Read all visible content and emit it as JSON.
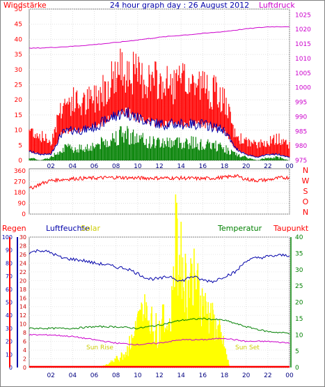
{
  "colors": {
    "wind": "#ff0000",
    "gust_mid": "#0000aa",
    "wind_avg": "#008000",
    "pressure": "#cc00cc",
    "direction": "#ff0000",
    "humidity": "#0000aa",
    "solar": "#ffff00",
    "temperature": "#008000",
    "dewpoint": "#cc00cc",
    "rain": "#ff0000",
    "frame": "#808080",
    "background": "#ffffff"
  },
  "chart_data": [
    {
      "type": "line",
      "title": "24 hour graph day : 26 August 2012",
      "left_label": "Windstärke",
      "right_label": "Luftdruck",
      "x_ticks": [
        "02",
        "04",
        "06",
        "08",
        "10",
        "12",
        "14",
        "16",
        "18",
        "20",
        "22",
        "00"
      ],
      "y_left_ticks": [
        "0",
        "5",
        "10",
        "15",
        "20",
        "25",
        "30",
        "35",
        "40",
        "45",
        "50"
      ],
      "y_left_range": [
        0,
        50
      ],
      "y_right_ticks": [
        "975",
        "980",
        "985",
        "990",
        "995",
        "1000",
        "1005",
        "1010",
        "1015",
        "1020",
        "1025"
      ],
      "y_right_range": [
        975,
        1027
      ],
      "grid": true,
      "series": [
        {
          "key": "gust",
          "x": [
            0,
            1,
            2,
            3,
            4,
            5,
            6,
            7,
            8,
            9,
            10,
            11,
            12,
            13,
            14,
            15,
            16,
            17,
            18,
            19,
            20,
            21,
            22,
            23,
            24
          ],
          "values": [
            10,
            8,
            6,
            18,
            19,
            18,
            20,
            24,
            28,
            30,
            27,
            26,
            25,
            24,
            25,
            25,
            24,
            22,
            19,
            8,
            6,
            5,
            6,
            7,
            5
          ]
        },
        {
          "key": "wind_mean",
          "x": [
            0,
            1,
            2,
            3,
            4,
            5,
            6,
            7,
            8,
            9,
            10,
            11,
            12,
            13,
            14,
            15,
            16,
            17,
            18,
            19,
            20,
            21,
            22,
            23,
            24
          ],
          "values": [
            3,
            2,
            2,
            9,
            10,
            10,
            11,
            13,
            15,
            16,
            14,
            13,
            12,
            12,
            12,
            12,
            12,
            11,
            10,
            4,
            2,
            1,
            2,
            2,
            1
          ]
        },
        {
          "key": "wind_avg",
          "x": [
            0,
            1,
            2,
            3,
            4,
            5,
            6,
            7,
            8,
            9,
            10,
            11,
            12,
            13,
            14,
            15,
            16,
            17,
            18,
            19,
            20,
            21,
            22,
            23,
            24
          ],
          "values": [
            1,
            0,
            1,
            4,
            4,
            4,
            5,
            6,
            8,
            9,
            7,
            6,
            6,
            6,
            6,
            6,
            5,
            5,
            4,
            2,
            1,
            0,
            1,
            1,
            0
          ]
        },
        {
          "key": "pressure",
          "x": [
            0,
            2,
            4,
            6,
            8,
            10,
            12,
            14,
            16,
            18,
            20,
            22,
            24
          ],
          "values": [
            1013.5,
            1013.8,
            1014.2,
            1014.8,
            1015.5,
            1016.4,
            1017.3,
            1018,
            1018.6,
            1019.3,
            1020.2,
            1020.9,
            1021
          ]
        }
      ]
    },
    {
      "type": "line",
      "direction_labels": [
        "N",
        "W",
        "S",
        "O",
        "N"
      ],
      "y_ticks": [
        "360",
        "270",
        "180",
        "90",
        "0"
      ],
      "y_range": [
        0,
        360
      ],
      "grid": true,
      "series": [
        {
          "key": "direction",
          "x": [
            0,
            1,
            2,
            4,
            6,
            8,
            10,
            12,
            14,
            16,
            18,
            19,
            20,
            21,
            22,
            23,
            24
          ],
          "values": [
            210,
            250,
            280,
            295,
            300,
            305,
            300,
            300,
            300,
            295,
            305,
            320,
            290,
            280,
            285,
            300,
            305
          ]
        }
      ]
    },
    {
      "type": "line",
      "labels": {
        "rain": "Regen",
        "humidity": "Luftfeuchte",
        "solar": "Solar",
        "temperature": "Temperatur",
        "dewpoint": "Taupunkt",
        "sunrise": "Sun Rise",
        "sunset": "Sun Set"
      },
      "x_ticks": [
        "02",
        "04",
        "06",
        "08",
        "10",
        "12",
        "14",
        "16",
        "18",
        "20",
        "22",
        "00"
      ],
      "axis_humidity_ticks": [
        "0",
        "10",
        "20",
        "30",
        "40",
        "50",
        "60",
        "70",
        "80",
        "90",
        "100"
      ],
      "axis_solar_ticks": [
        "0",
        "2",
        "4",
        "6",
        "8",
        "10",
        "12",
        "14",
        "16",
        "18",
        "20",
        "22",
        "24",
        "26",
        "28",
        "30"
      ],
      "axis_temperature_ticks": [
        "0",
        "5",
        "10",
        "15",
        "20",
        "25",
        "30",
        "35",
        "40"
      ],
      "grid": true,
      "series": [
        {
          "key": "humidity",
          "x": [
            0,
            1,
            2,
            3,
            4,
            5,
            6,
            7,
            8,
            9,
            10,
            11,
            12,
            13,
            14,
            15,
            16,
            17,
            18,
            19,
            20,
            21,
            22,
            23,
            24
          ],
          "values": [
            88,
            90,
            88,
            84,
            83,
            82,
            80,
            79,
            77,
            76,
            72,
            68,
            68,
            70,
            66,
            70,
            67,
            66,
            70,
            73,
            82,
            84,
            85,
            86,
            86
          ]
        },
        {
          "key": "temperature",
          "x": [
            0,
            2,
            4,
            6,
            8,
            10,
            12,
            14,
            16,
            18,
            20,
            22,
            24
          ],
          "values": [
            12,
            12,
            12,
            12.5,
            12.5,
            12,
            13,
            14.5,
            15,
            14.5,
            12.5,
            11,
            10.5
          ]
        },
        {
          "key": "dewpoint",
          "x": [
            0,
            2,
            4,
            6,
            8,
            10,
            12,
            14,
            16,
            18,
            20,
            22,
            24
          ],
          "values": [
            10,
            10,
            9.5,
            8.5,
            7.5,
            7,
            7.5,
            8.5,
            8.5,
            9,
            8,
            8,
            7.5
          ]
        },
        {
          "key": "solar",
          "x": [
            6.5,
            7,
            7.5,
            8,
            8.5,
            9,
            9.5,
            10,
            10.5,
            11,
            11.5,
            12,
            12.5,
            13,
            13.5,
            14,
            14.5,
            15,
            15.5,
            16,
            16.5,
            17,
            17.5,
            18,
            18.5
          ],
          "values": [
            0.2,
            0.6,
            1.2,
            2,
            3,
            4.5,
            7,
            11,
            14,
            13,
            10,
            10,
            12,
            9,
            31,
            26,
            21,
            22,
            20,
            16,
            14,
            11,
            9,
            5,
            0
          ]
        },
        {
          "key": "rain",
          "x": [
            0,
            24
          ],
          "values": [
            0,
            0
          ]
        }
      ]
    }
  ]
}
